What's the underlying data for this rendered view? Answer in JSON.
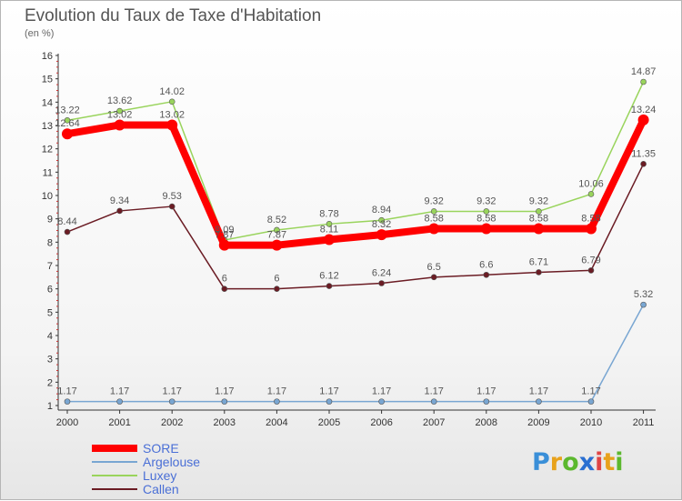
{
  "chart_data": {
    "type": "line",
    "title": "Evolution du Taux de Taxe d'Habitation",
    "ylabel": "(en %)",
    "xlabel": "",
    "ylim": [
      1,
      16
    ],
    "yticks": [
      "1",
      "2",
      "3",
      "4",
      "5",
      "6",
      "7",
      "8",
      "9",
      "10",
      "11",
      "12",
      "13",
      "14",
      "15",
      "16"
    ],
    "x": [
      "2000",
      "2001",
      "2002",
      "2003",
      "2004",
      "2005",
      "2006",
      "2007",
      "2008",
      "2009",
      "2010",
      "2011"
    ],
    "series": [
      {
        "name": "Callen",
        "color": "#6b1c24",
        "values": [
          8.44,
          9.34,
          9.53,
          6,
          6,
          6.12,
          6.24,
          6.5,
          6.6,
          6.71,
          6.79,
          11.35
        ],
        "labels": [
          "8.44",
          "9.34",
          "9.53",
          "6",
          "6",
          "6.12",
          "6.24",
          "6.5",
          "6.6",
          "6.71",
          "6.79",
          "11.35"
        ]
      },
      {
        "name": "Luxey",
        "color": "#99d45c",
        "values": [
          13.22,
          13.62,
          14.02,
          8.09,
          8.52,
          8.78,
          8.94,
          9.32,
          9.32,
          9.32,
          10.06,
          14.87
        ],
        "labels": [
          "13.22",
          "13.62",
          "14.02",
          "8.09",
          "8.52",
          "8.78",
          "8.94",
          "9.32",
          "9.32",
          "9.32",
          "10.06",
          "14.87"
        ]
      },
      {
        "name": "Argelouse",
        "color": "#79a6d2",
        "values": [
          1.17,
          1.17,
          1.17,
          1.17,
          1.17,
          1.17,
          1.17,
          1.17,
          1.17,
          1.17,
          1.17,
          5.32
        ],
        "labels": [
          "1.17",
          "1.17",
          "1.17",
          "1.17",
          "1.17",
          "1.17",
          "1.17",
          "1.17",
          "1.17",
          "1.17",
          "1.17",
          "5.32"
        ]
      },
      {
        "name": "SORE",
        "color": "#ff0000",
        "values": [
          12.64,
          13.02,
          13.02,
          7.87,
          7.87,
          8.11,
          8.32,
          8.58,
          8.58,
          8.58,
          8.58,
          13.24
        ],
        "labels": [
          "12.64",
          "13.02",
          "13.02",
          "7.87",
          "7.87",
          "8.11",
          "8.32",
          "8.58",
          "8.58",
          "8.58",
          "8.58",
          "13.24"
        ]
      }
    ],
    "legend": [
      "SORE",
      "Argelouse",
      "Luxey",
      "Callen"
    ],
    "legend_position": "bottom-left",
    "grid": false
  },
  "logo": {
    "letters": [
      "P",
      "r",
      "o",
      "x",
      "i",
      "t",
      "i"
    ],
    "colors": [
      "#3a8fd8",
      "#e8a21c",
      "#5cb82e",
      "#2a6fd1",
      "#e04545",
      "#e8a21c",
      "#5cb82e"
    ]
  }
}
